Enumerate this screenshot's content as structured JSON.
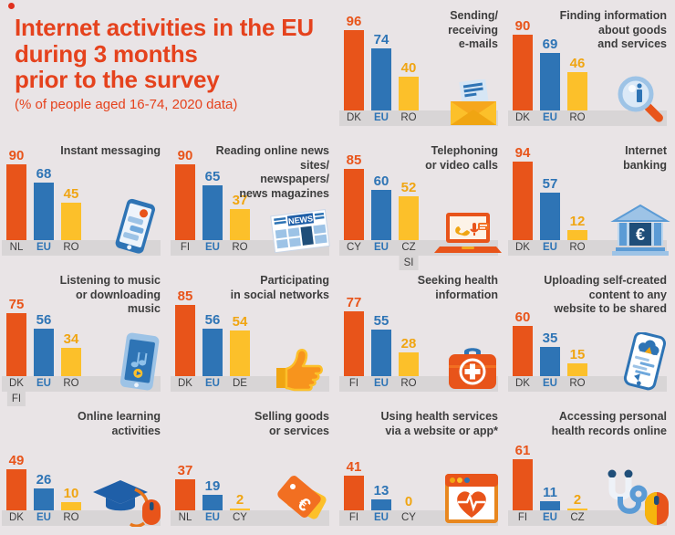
{
  "header": {
    "title_line1": "Internet activities in the EU",
    "title_line2": "during 3 months",
    "title_line3": "prior to the survey",
    "subtitle": "(% of people aged 16-74, 2020 data)"
  },
  "colors": {
    "background": "#e9e4e6",
    "accent_orange": "#e8541a",
    "accent_blue": "#2e74b5",
    "accent_yellow": "#fcc02a",
    "yellow_value_label": "#f0a512",
    "title_red": "#e5421d",
    "text_dark": "#3d3d3d",
    "baseline_strip": "#d8d5d6"
  },
  "chart_data": [
    {
      "id": "emails",
      "type": "bar",
      "title": "Sending/\nreceiving\ne-mails",
      "icon": "envelope-icon",
      "bars": [
        {
          "label": "DK",
          "value": 96,
          "color_key": "orange"
        },
        {
          "label": "EU",
          "value": 74,
          "color_key": "blue"
        },
        {
          "label": "RO",
          "value": 40,
          "color_key": "yellow"
        }
      ]
    },
    {
      "id": "goods-info",
      "type": "bar",
      "title": "Finding information\nabout goods\nand services",
      "icon": "magnifier-info-icon",
      "bars": [
        {
          "label": "DK",
          "value": 90,
          "color_key": "orange"
        },
        {
          "label": "EU",
          "value": 69,
          "color_key": "blue"
        },
        {
          "label": "RO",
          "value": 46,
          "color_key": "yellow"
        }
      ]
    },
    {
      "id": "instant-messaging",
      "type": "bar",
      "title": "Instant messaging",
      "icon": "chat-phone-icon",
      "bars": [
        {
          "label": "NL",
          "value": 90,
          "color_key": "orange"
        },
        {
          "label": "EU",
          "value": 68,
          "color_key": "blue"
        },
        {
          "label": "RO",
          "value": 45,
          "color_key": "yellow"
        }
      ]
    },
    {
      "id": "online-news",
      "type": "bar",
      "title": "Reading online news sites/\nnewspapers/\nnews magazines",
      "icon": "news-icon",
      "bars": [
        {
          "label": "FI",
          "value": 90,
          "color_key": "orange"
        },
        {
          "label": "EU",
          "value": 65,
          "color_key": "blue"
        },
        {
          "label": "RO",
          "value": 37,
          "color_key": "yellow"
        }
      ]
    },
    {
      "id": "video-calls",
      "type": "bar",
      "title": "Telephoning\nor video calls",
      "icon": "laptop-call-icon",
      "bars": [
        {
          "label": "CY",
          "value": 85,
          "color_key": "orange"
        },
        {
          "label": "EU",
          "value": 60,
          "color_key": "blue"
        },
        {
          "label": "CZ",
          "sub_label": "SI",
          "value": 52,
          "color_key": "yellow"
        }
      ]
    },
    {
      "id": "internet-banking",
      "type": "bar",
      "title": "Internet\nbanking",
      "icon": "bank-icon",
      "bars": [
        {
          "label": "DK",
          "value": 94,
          "color_key": "orange"
        },
        {
          "label": "EU",
          "value": 57,
          "color_key": "blue"
        },
        {
          "label": "RO",
          "value": 12,
          "color_key": "yellow"
        }
      ]
    },
    {
      "id": "music",
      "type": "bar",
      "title": "Listening to music\nor downloading\nmusic",
      "icon": "music-phone-icon",
      "bars": [
        {
          "label": "DK",
          "sub_label": "FI",
          "value": 75,
          "color_key": "orange"
        },
        {
          "label": "EU",
          "value": 56,
          "color_key": "blue"
        },
        {
          "label": "RO",
          "value": 34,
          "color_key": "yellow"
        }
      ]
    },
    {
      "id": "social-networks",
      "type": "bar",
      "title": "Participating\nin social networks",
      "icon": "thumbs-up-icon",
      "bars": [
        {
          "label": "DK",
          "value": 85,
          "color_key": "orange"
        },
        {
          "label": "EU",
          "value": 56,
          "color_key": "blue"
        },
        {
          "label": "DE",
          "value": 54,
          "color_key": "yellow"
        }
      ]
    },
    {
      "id": "health-info",
      "type": "bar",
      "title": "Seeking health\ninformation",
      "icon": "first-aid-icon",
      "bars": [
        {
          "label": "FI",
          "value": 77,
          "color_key": "orange"
        },
        {
          "label": "EU",
          "value": 55,
          "color_key": "blue"
        },
        {
          "label": "RO",
          "value": 28,
          "color_key": "yellow"
        }
      ]
    },
    {
      "id": "uploading-content",
      "type": "bar",
      "title": "Uploading self-created\ncontent to any\nwebsite to be shared",
      "icon": "upload-phone-icon",
      "bars": [
        {
          "label": "DK",
          "value": 60,
          "color_key": "orange"
        },
        {
          "label": "EU",
          "value": 35,
          "color_key": "blue"
        },
        {
          "label": "RO",
          "value": 15,
          "color_key": "yellow"
        }
      ]
    },
    {
      "id": "online-learning",
      "type": "bar",
      "title": "Online learning\nactivities",
      "icon": "graduation-mouse-icon",
      "bars": [
        {
          "label": "DK",
          "value": 49,
          "color_key": "orange"
        },
        {
          "label": "EU",
          "value": 26,
          "color_key": "blue"
        },
        {
          "label": "RO",
          "value": 10,
          "color_key": "yellow"
        }
      ]
    },
    {
      "id": "selling-goods",
      "type": "bar",
      "title": "Selling goods\nor services",
      "icon": "price-tag-icon",
      "bars": [
        {
          "label": "NL",
          "value": 37,
          "color_key": "orange"
        },
        {
          "label": "EU",
          "value": 19,
          "color_key": "blue"
        },
        {
          "label": "CY",
          "value": 2,
          "color_key": "yellow"
        }
      ]
    },
    {
      "id": "health-services",
      "type": "bar",
      "title": "Using health services\nvia a website or app*",
      "icon": "health-browser-icon",
      "bars": [
        {
          "label": "FI",
          "value": 41,
          "color_key": "orange"
        },
        {
          "label": "EU",
          "value": 13,
          "color_key": "blue"
        },
        {
          "label": "CY",
          "value": 0,
          "color_key": "yellow"
        }
      ]
    },
    {
      "id": "health-records",
      "type": "bar",
      "title": "Accessing personal\nhealth records online",
      "icon": "stethoscope-mouse-icon",
      "bars": [
        {
          "label": "FI",
          "value": 61,
          "color_key": "orange"
        },
        {
          "label": "EU",
          "value": 11,
          "color_key": "blue"
        },
        {
          "label": "CZ",
          "value": 2,
          "color_key": "yellow"
        }
      ]
    }
  ]
}
